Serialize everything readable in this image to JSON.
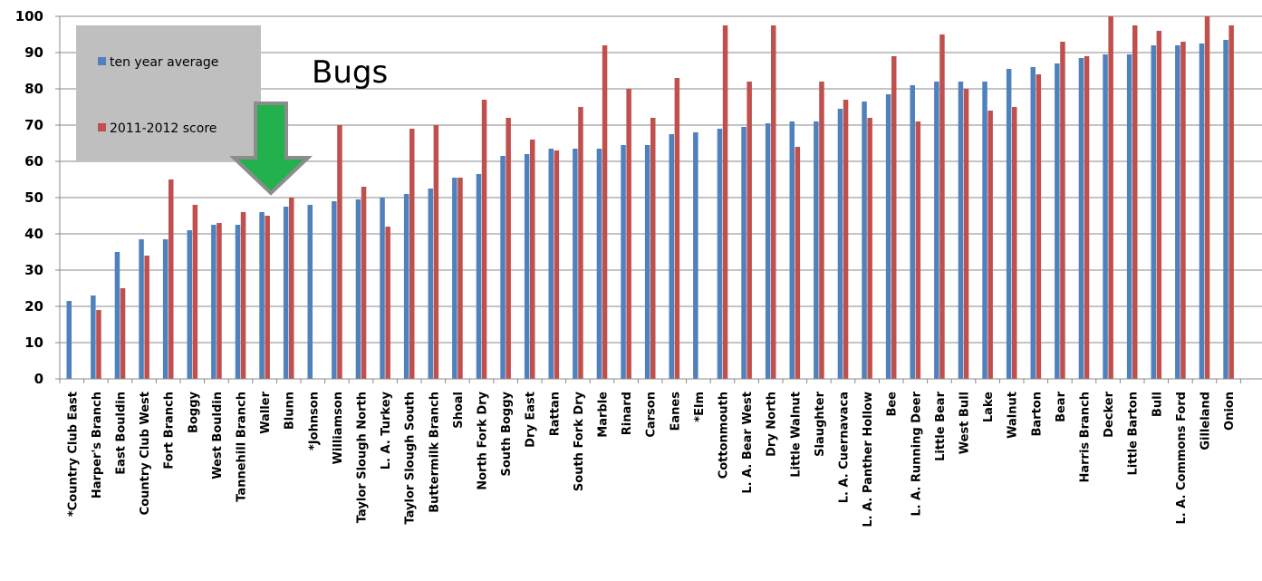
{
  "chart_data": {
    "type": "bar",
    "title": "",
    "xlabel": "",
    "ylabel": "",
    "ylim": [
      0,
      100
    ],
    "yticks": [
      0,
      10,
      20,
      30,
      40,
      50,
      60,
      70,
      80,
      90,
      100
    ],
    "grid": "horizontal",
    "legend_placement": "top-left",
    "annotation": "Bugs",
    "annotation_arrow_target": "Waller",
    "colors": {
      "series1": "#4f81bd",
      "series2": "#c0504d",
      "grid": "#888888",
      "legend_bg": "#bfbfbf",
      "arrow": "#22b14c",
      "arrow_outline": "#8c8c8c"
    },
    "categories": [
      "*Country Club East",
      "Harper's Branch",
      "East Bouldin",
      "Country Club West",
      "Fort Branch",
      "Boggy",
      "West Bouldin",
      "Tannehill Branch",
      "Waller",
      "Blunn",
      "*Johnson",
      "Williamson",
      "Taylor Slough North",
      "L. A. Turkey",
      "Taylor Slough South",
      "Buttermilk Branch",
      "Shoal",
      "North Fork Dry",
      "South Boggy",
      "Dry East",
      "Rattan",
      "South Fork Dry",
      "Marble",
      "Rinard",
      "Carson",
      "Eanes",
      "*Elm",
      "Cottonmouth",
      "L. A. Bear West",
      "Dry North",
      "Little Walnut",
      "Slaughter",
      "L. A. Cuernavaca",
      "L. A. Panther Hollow",
      "Bee",
      "L. A. Running Deer",
      "Little Bear",
      "West Bull",
      "Lake",
      "Walnut",
      "Barton",
      "Bear",
      "Harris Branch",
      "Decker",
      "Little Barton",
      "Bull",
      "L. A. Commons Ford",
      "Gilleland",
      "Onion"
    ],
    "series": [
      {
        "name": "ten year average",
        "values": [
          21.5,
          23,
          35,
          38.5,
          38.5,
          41,
          42.5,
          42.5,
          46,
          47.5,
          48,
          49,
          49.5,
          50,
          51,
          52.5,
          55.5,
          56.5,
          61.5,
          62,
          63.5,
          63.5,
          63.5,
          64.5,
          64.5,
          67.5,
          68,
          69,
          69.5,
          70.5,
          71,
          71,
          74.5,
          76.5,
          78.5,
          81,
          82,
          82,
          82,
          85.5,
          86,
          87,
          88.5,
          89.5,
          89.5,
          92,
          92,
          92.5,
          93.5
        ]
      },
      {
        "name": "2011-2012 score",
        "values": [
          null,
          19,
          25,
          34,
          55,
          48,
          43,
          46,
          45,
          50,
          null,
          70,
          53,
          42,
          69,
          70,
          55.5,
          77,
          72,
          66,
          63,
          75,
          92,
          80,
          72,
          83,
          null,
          97.5,
          82,
          97.5,
          64,
          82,
          77,
          72,
          89,
          71,
          95,
          80,
          74,
          75,
          84,
          93,
          89,
          100,
          97.5,
          96,
          93,
          100,
          97.5
        ]
      }
    ]
  }
}
